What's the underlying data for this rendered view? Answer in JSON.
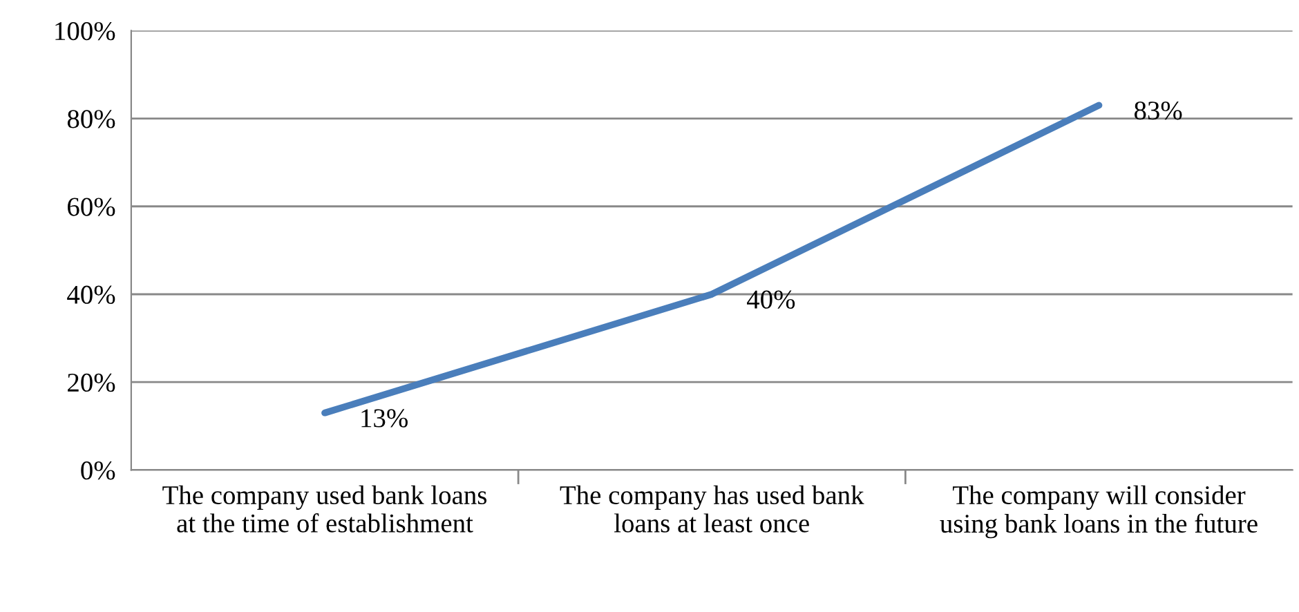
{
  "chart_data": {
    "type": "line",
    "categories": [
      "The company used bank loans at the time of establishment",
      "The company has used bank loans at least once",
      "The company will consider using bank loans in the future"
    ],
    "series": [
      {
        "color": "#4a7ebb",
        "values": [
          13,
          40,
          83
        ]
      }
    ],
    "ylim": [
      0,
      100
    ],
    "yticks": [
      {
        "value": 0,
        "label": "0%"
      },
      {
        "value": 20,
        "label": "20%"
      },
      {
        "value": 40,
        "label": "40%"
      },
      {
        "value": 60,
        "label": "60%"
      },
      {
        "value": 80,
        "label": "80%"
      },
      {
        "value": 100,
        "label": "100%"
      }
    ],
    "grid": "y",
    "marker": "none",
    "line_style": "solid",
    "value_labels": [
      "13%",
      "40%",
      "83%"
    ]
  }
}
